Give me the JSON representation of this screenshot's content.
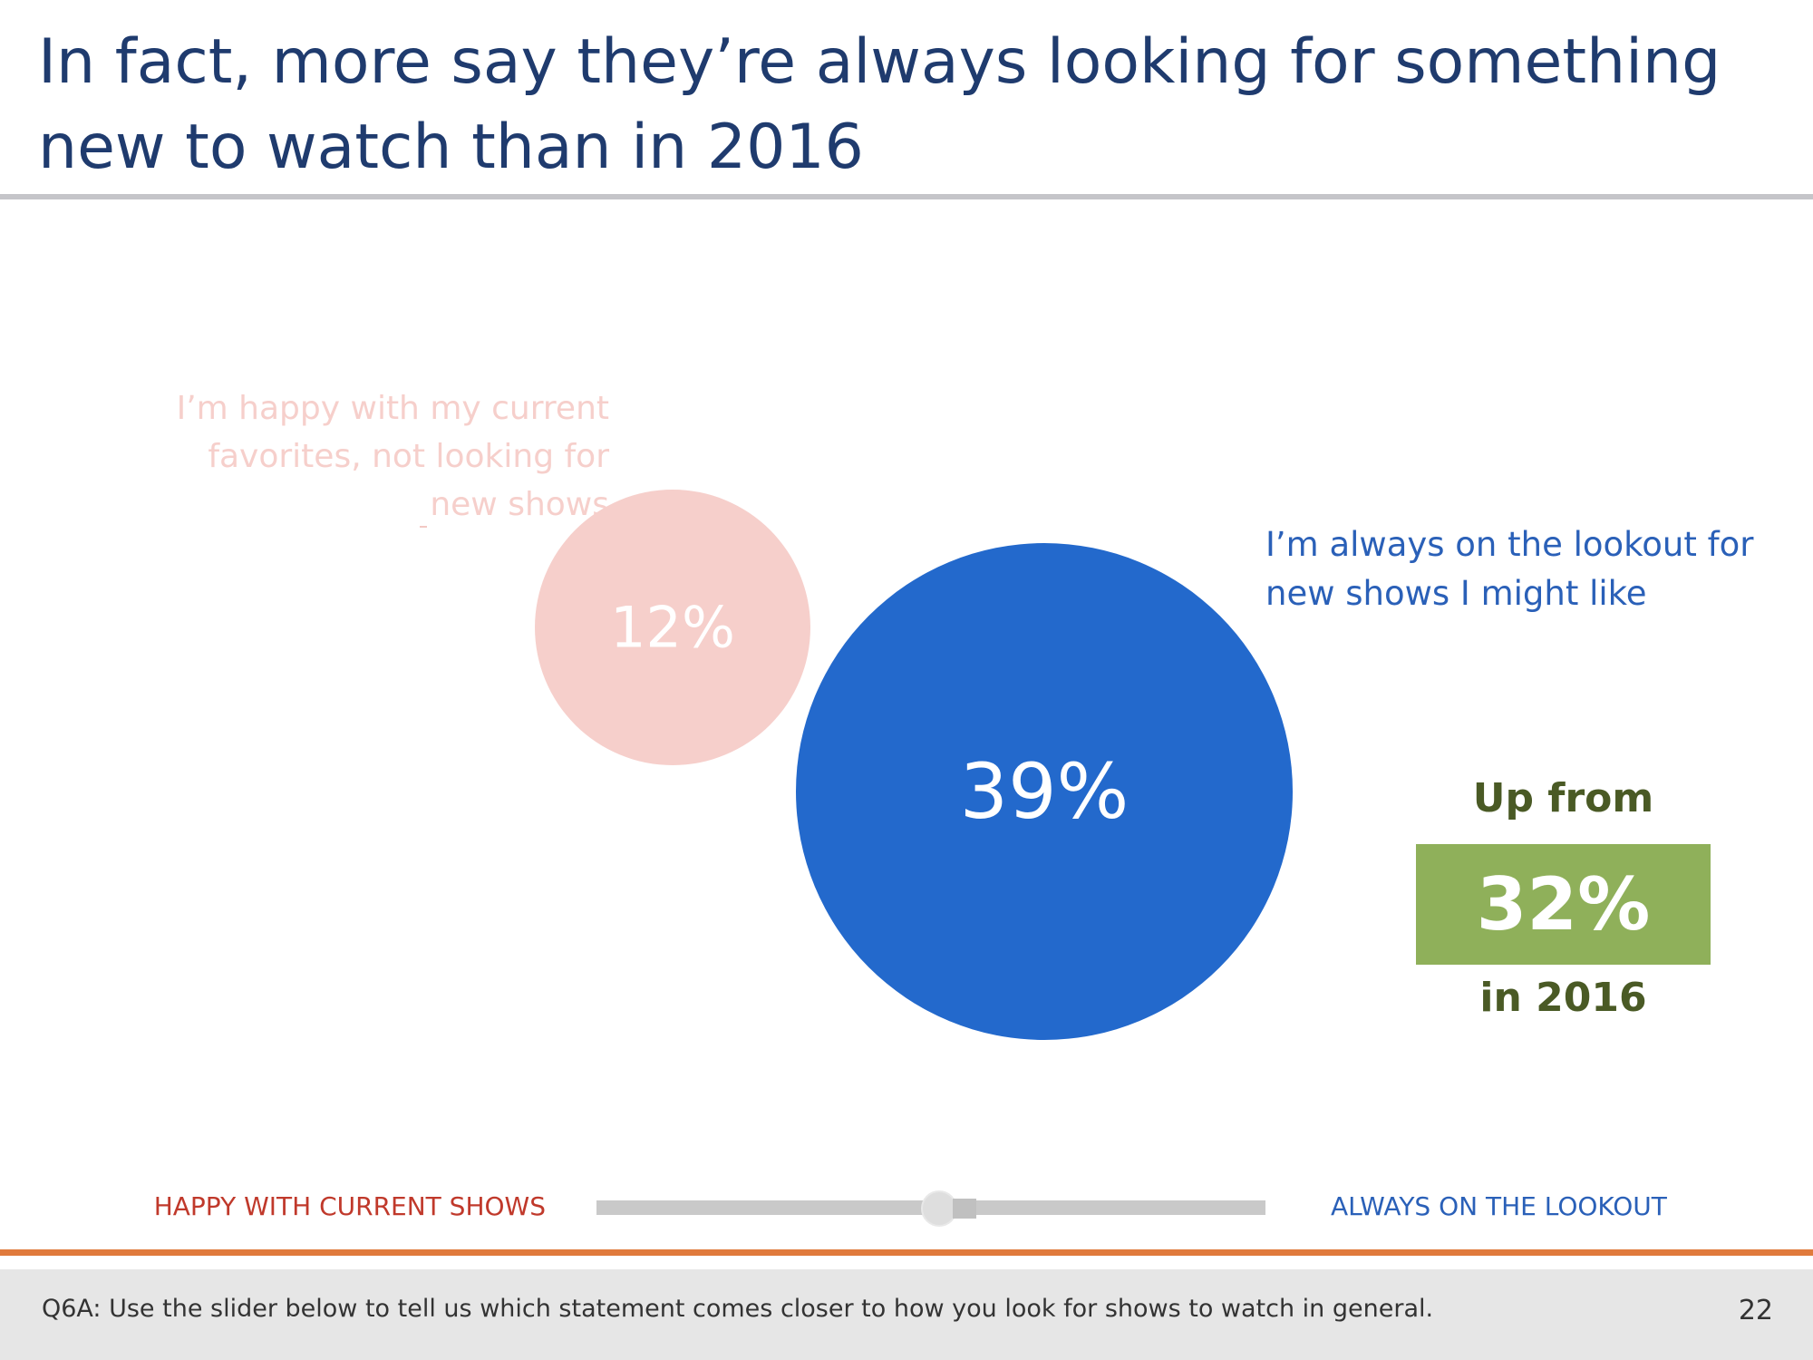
{
  "slide": {
    "title": "In fact, more say they’re always looking for something new to watch than in 2016",
    "footer_question": "Q6A: Use the slider below to tell us which statement comes closer to how you look for shows to watch in general.",
    "page_number": "22"
  },
  "chart_data": {
    "type": "bubble",
    "series": [
      {
        "name": "I’m happy with my current favorites, not looking for new shows",
        "value": 12,
        "label": "12%",
        "color": "#f6cfcb"
      },
      {
        "name": "I’m always on the lookout for new shows I might like",
        "value": 39,
        "label": "39%",
        "color": "#2369cc"
      }
    ],
    "comparison": {
      "prefix": "Up from",
      "value": 32,
      "label": "32%",
      "suffix": "in 2016",
      "color": "#8fb05a"
    }
  },
  "slider": {
    "left_label": "HAPPY WITH CURRENT SHOWS",
    "right_label": "ALWAYS ON THE LOOKOUT",
    "position": 0.51
  },
  "colors": {
    "title": "#1f3b6e",
    "accent_orange": "#e07a3c",
    "label_text": "#4a5a25"
  }
}
